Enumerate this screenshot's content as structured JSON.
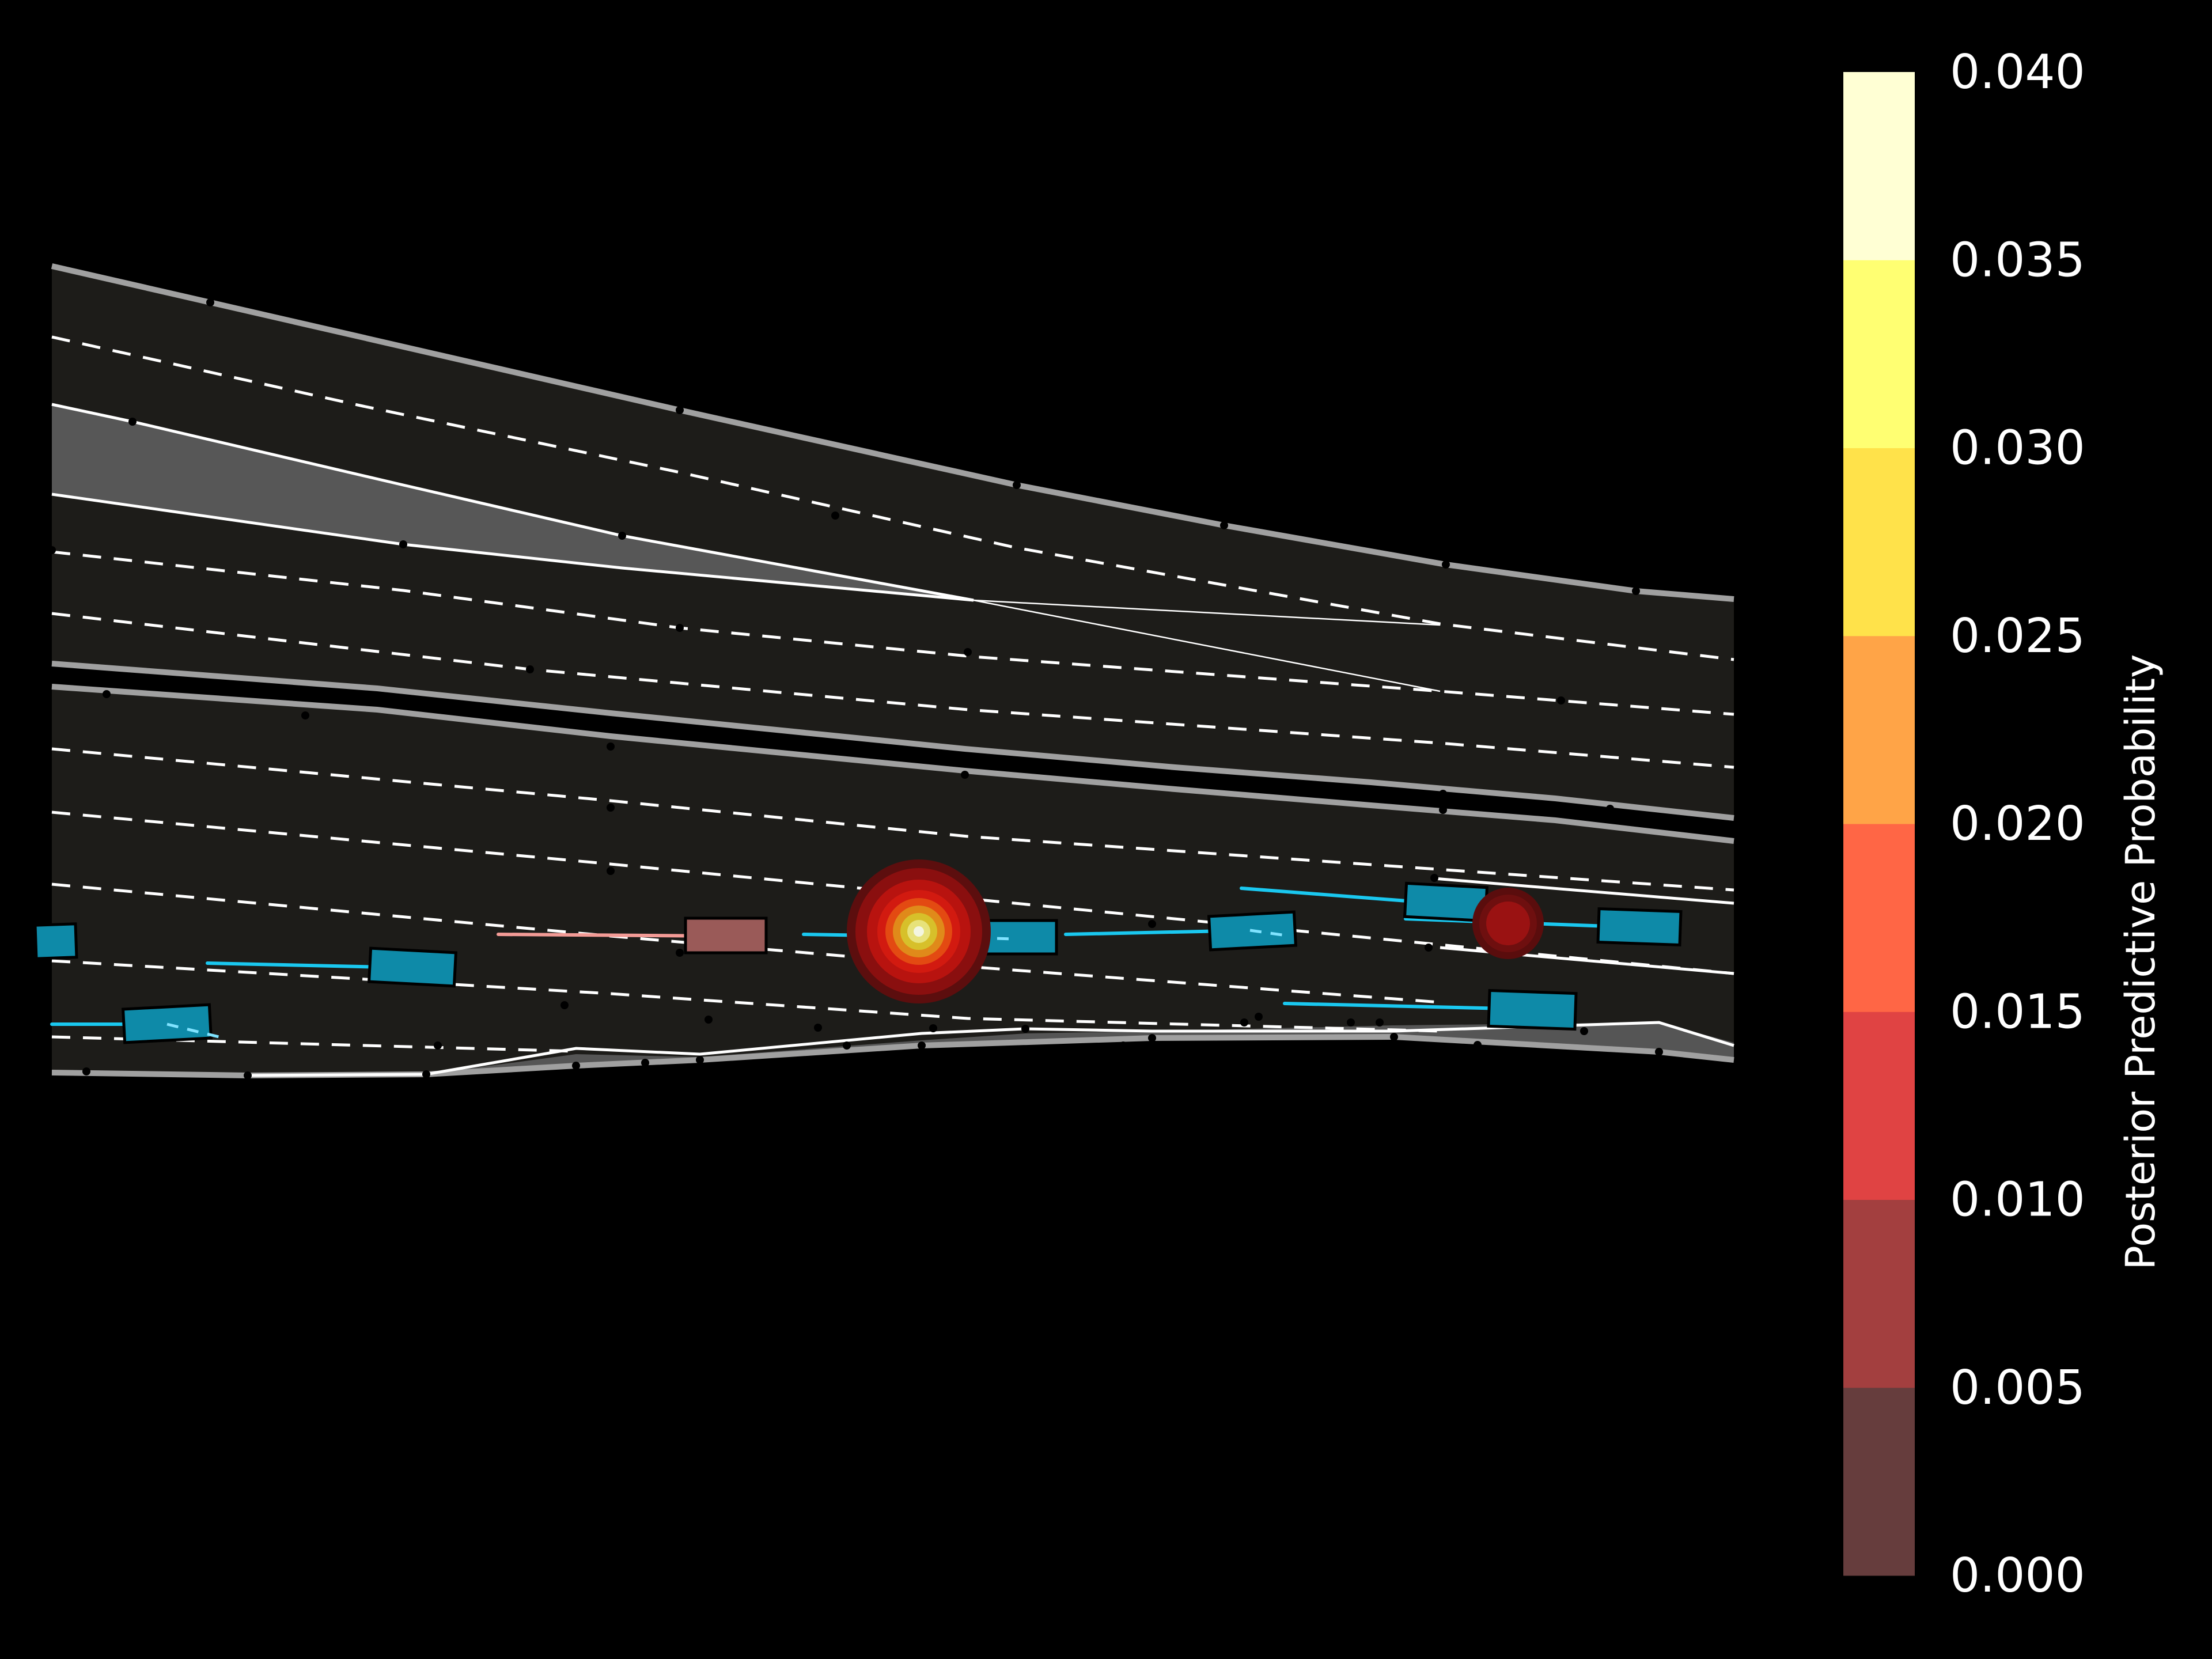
{
  "colorbar": {
    "label": "Posterior Predictive Probability",
    "ticks": [
      "0.000",
      "0.005",
      "0.010",
      "0.015",
      "0.020",
      "0.025",
      "0.030",
      "0.035",
      "0.040"
    ],
    "bands": [
      "#663d3d",
      "#a33f3f",
      "#e04343",
      "#ff6645",
      "#ffa447",
      "#ffe24a",
      "#ffff72",
      "#ffffd4"
    ]
  },
  "colors": {
    "road": "#1d1c19",
    "background": "#000000",
    "road_edge": "#a0a0a0",
    "lane_marking": "#ffffff",
    "median": "#575757",
    "agent_vehicle": "#0e8aa8",
    "agent_trajectory": "#1ac8f0",
    "ego_vehicle": "#9a5a58",
    "ego_trajectory": "#f39b96"
  }
}
